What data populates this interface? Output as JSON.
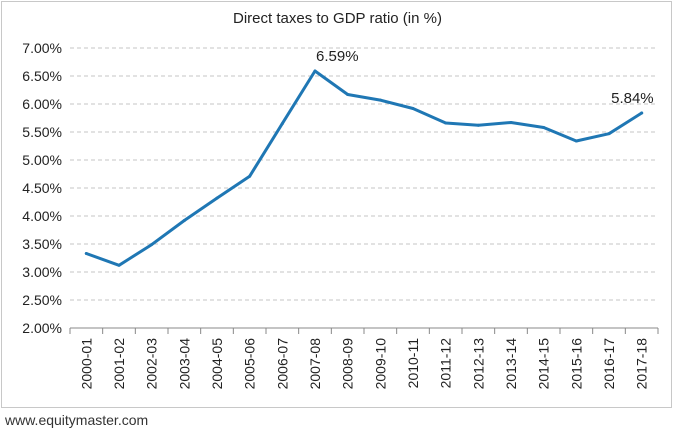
{
  "chart_data": {
    "type": "line",
    "title": "Direct taxes to GDP ratio (in %)",
    "xlabel": "",
    "ylabel": "",
    "categories": [
      "2000-01",
      "2001-02",
      "2002-03",
      "2003-04",
      "2004-05",
      "2005-06",
      "2006-07",
      "2007-08",
      "2008-09",
      "2009-10",
      "2010-11",
      "2011-12",
      "2012-13",
      "2013-14",
      "2014-15",
      "2015-16",
      "2016-17",
      "2017-18"
    ],
    "series": [
      {
        "values": [
          3.33,
          3.12,
          3.49,
          3.92,
          4.32,
          4.71,
          5.65,
          6.59,
          6.17,
          6.07,
          5.92,
          5.66,
          5.62,
          5.67,
          5.58,
          5.34,
          5.47,
          5.84
        ],
        "color": "#1f77b4"
      }
    ],
    "ylim": [
      2.0,
      7.0
    ],
    "yticks": [
      "2.00%",
      "2.50%",
      "3.00%",
      "3.50%",
      "4.00%",
      "4.50%",
      "5.00%",
      "5.50%",
      "6.00%",
      "6.50%",
      "7.00%"
    ],
    "grid": "horizontal dashed",
    "legend": "none",
    "annotations": [
      {
        "category": "2007-08",
        "label": "6.59%"
      },
      {
        "category": "2017-18",
        "label": "5.84%"
      }
    ]
  },
  "source_text": "www.equitymaster.com"
}
